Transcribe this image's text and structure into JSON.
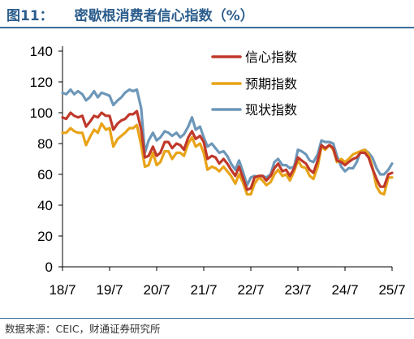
{
  "header": {
    "fig_label": "图11：",
    "title": "密歇根消费者信心指数（%）"
  },
  "source": "数据来源：CEIC，财通证券研究所",
  "colors": {
    "title": "#2b5d8c",
    "rule": "#3c6e9c",
    "series": [
      "#c0392b",
      "#e8a317",
      "#6d97b8"
    ]
  },
  "chart_data": {
    "type": "line",
    "x_ticks": [
      "18/7",
      "19/7",
      "20/7",
      "21/7",
      "22/7",
      "23/7",
      "24/7",
      "25/7"
    ],
    "x_tick_years": [
      2018.5,
      2019.5,
      2020.5,
      2021.5,
      2022.5,
      2023.5,
      2024.5,
      2025.5
    ],
    "xlim": [
      2018.5,
      2025.5
    ],
    "ylim": [
      0,
      140
    ],
    "y_ticks": [
      0,
      20,
      40,
      60,
      80,
      100,
      120,
      140
    ],
    "grid": false,
    "legend_position": "top-right",
    "series": [
      {
        "name": "信心指数",
        "x": [
          2018.5,
          2018.58,
          2018.67,
          2018.75,
          2018.83,
          2018.92,
          2019.0,
          2019.08,
          2019.17,
          2019.25,
          2019.33,
          2019.42,
          2019.5,
          2019.58,
          2019.67,
          2019.75,
          2019.83,
          2019.92,
          2020.0,
          2020.08,
          2020.17,
          2020.25,
          2020.33,
          2020.42,
          2020.5,
          2020.58,
          2020.67,
          2020.75,
          2020.83,
          2020.92,
          2021.0,
          2021.08,
          2021.17,
          2021.25,
          2021.33,
          2021.42,
          2021.5,
          2021.58,
          2021.67,
          2021.75,
          2021.83,
          2021.92,
          2022.0,
          2022.08,
          2022.17,
          2022.25,
          2022.33,
          2022.42,
          2022.5,
          2022.58,
          2022.67,
          2022.75,
          2022.83,
          2022.92,
          2023.0,
          2023.08,
          2023.17,
          2023.25,
          2023.33,
          2023.42,
          2023.5,
          2023.58,
          2023.67,
          2023.75,
          2023.83,
          2023.92,
          2024.0,
          2024.08,
          2024.17,
          2024.25,
          2024.33,
          2024.42,
          2024.5,
          2024.58,
          2024.67,
          2024.75,
          2024.83,
          2024.92,
          2025.0,
          2025.08,
          2025.17,
          2025.25,
          2025.33,
          2025.42,
          2025.5
        ],
        "values": [
          97,
          96,
          100,
          98,
          97,
          98,
          91,
          94,
          98,
          97,
          100,
          98,
          98,
          89,
          93,
          95,
          96,
          99,
          99,
          101,
          89,
          71,
          72,
          78,
          72,
          74,
          81,
          81,
          77,
          80,
          79,
          76,
          84,
          88,
          83,
          85,
          81,
          70,
          72,
          71,
          67,
          70,
          67,
          63,
          59,
          65,
          58,
          50,
          51,
          58,
          59,
          59,
          56,
          59,
          64,
          67,
          62,
          63,
          59,
          64,
          71,
          69,
          67,
          63,
          61,
          69,
          79,
          77,
          79,
          77,
          69,
          68,
          66,
          68,
          70,
          71,
          74,
          74,
          71,
          64,
          57,
          52,
          52,
          60,
          61
        ]
      },
      {
        "name": "预期指数",
        "x": [
          2018.5,
          2018.58,
          2018.67,
          2018.75,
          2018.83,
          2018.92,
          2019.0,
          2019.08,
          2019.17,
          2019.25,
          2019.33,
          2019.42,
          2019.5,
          2019.58,
          2019.67,
          2019.75,
          2019.83,
          2019.92,
          2020.0,
          2020.08,
          2020.17,
          2020.25,
          2020.33,
          2020.42,
          2020.5,
          2020.58,
          2020.67,
          2020.75,
          2020.83,
          2020.92,
          2021.0,
          2021.08,
          2021.17,
          2021.25,
          2021.33,
          2021.42,
          2021.5,
          2021.58,
          2021.67,
          2021.75,
          2021.83,
          2021.92,
          2022.0,
          2022.08,
          2022.17,
          2022.25,
          2022.33,
          2022.42,
          2022.5,
          2022.58,
          2022.67,
          2022.75,
          2022.83,
          2022.92,
          2023.0,
          2023.08,
          2023.17,
          2023.25,
          2023.33,
          2023.42,
          2023.5,
          2023.58,
          2023.67,
          2023.75,
          2023.83,
          2023.92,
          2024.0,
          2024.08,
          2024.17,
          2024.25,
          2024.33,
          2024.42,
          2024.5,
          2024.58,
          2024.67,
          2024.75,
          2024.83,
          2024.92,
          2025.0,
          2025.08,
          2025.17,
          2025.25,
          2025.33,
          2025.42,
          2025.5
        ],
        "values": [
          87,
          87,
          90,
          88,
          87,
          87,
          79,
          84,
          89,
          87,
          93,
          89,
          90,
          78,
          83,
          85,
          87,
          90,
          90,
          92,
          79,
          65,
          66,
          74,
          66,
          68,
          75,
          75,
          70,
          74,
          74,
          72,
          80,
          84,
          78,
          80,
          74,
          63,
          65,
          64,
          62,
          65,
          62,
          59,
          54,
          60,
          55,
          47,
          47,
          54,
          58,
          56,
          53,
          55,
          60,
          63,
          59,
          60,
          56,
          62,
          69,
          65,
          64,
          59,
          57,
          65,
          78,
          76,
          79,
          76,
          68,
          70,
          68,
          70,
          73,
          74,
          75,
          76,
          73,
          65,
          52,
          48,
          47,
          58,
          58
        ]
      },
      {
        "name": "现状指数",
        "x": [
          2018.5,
          2018.58,
          2018.67,
          2018.75,
          2018.83,
          2018.92,
          2019.0,
          2019.08,
          2019.17,
          2019.25,
          2019.33,
          2019.42,
          2019.5,
          2019.58,
          2019.67,
          2019.75,
          2019.83,
          2019.92,
          2020.0,
          2020.08,
          2020.17,
          2020.25,
          2020.33,
          2020.42,
          2020.5,
          2020.58,
          2020.67,
          2020.75,
          2020.83,
          2020.92,
          2021.0,
          2021.08,
          2021.17,
          2021.25,
          2021.33,
          2021.42,
          2021.5,
          2021.58,
          2021.67,
          2021.75,
          2021.83,
          2021.92,
          2022.0,
          2022.08,
          2022.17,
          2022.25,
          2022.33,
          2022.42,
          2022.5,
          2022.58,
          2022.67,
          2022.75,
          2022.83,
          2022.92,
          2023.0,
          2023.08,
          2023.17,
          2023.25,
          2023.33,
          2023.42,
          2023.5,
          2023.58,
          2023.67,
          2023.75,
          2023.83,
          2023.92,
          2024.0,
          2024.08,
          2024.17,
          2024.25,
          2024.33,
          2024.42,
          2024.5,
          2024.58,
          2024.67,
          2024.75,
          2024.83,
          2024.92,
          2025.0,
          2025.08,
          2025.17,
          2025.25,
          2025.33,
          2025.42,
          2025.5
        ],
        "values": [
          113,
          112,
          115,
          112,
          114,
          112,
          108,
          110,
          114,
          110,
          113,
          112,
          111,
          105,
          108,
          110,
          113,
          115,
          114,
          115,
          103,
          74,
          82,
          87,
          82,
          84,
          88,
          87,
          85,
          87,
          84,
          86,
          91,
          97,
          89,
          91,
          84,
          78,
          80,
          77,
          74,
          75,
          72,
          67,
          63,
          69,
          62,
          53,
          58,
          59,
          58,
          59,
          58,
          60,
          68,
          70,
          66,
          66,
          64,
          65,
          76,
          75,
          73,
          69,
          68,
          73,
          82,
          81,
          81,
          80,
          72,
          65,
          62,
          64,
          64,
          68,
          75,
          76,
          74,
          71,
          64,
          60,
          60,
          63,
          67
        ]
      }
    ]
  }
}
